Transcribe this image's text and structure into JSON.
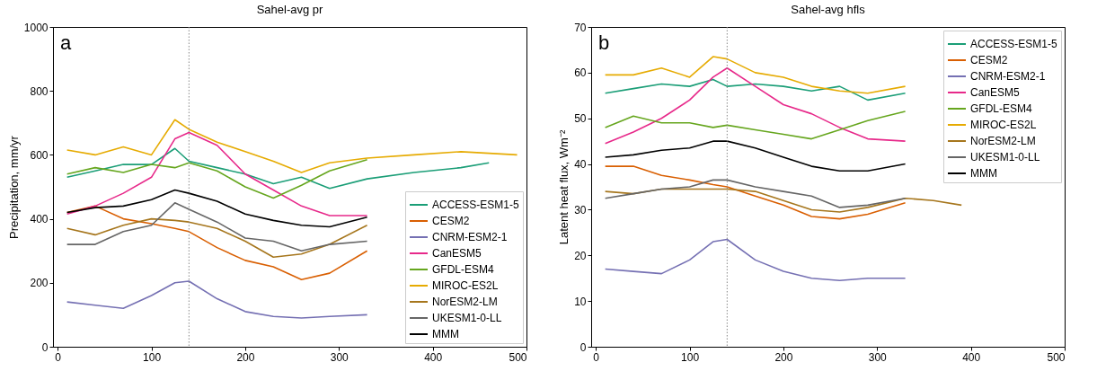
{
  "chart_data": [
    {
      "type": "line",
      "title": "Sahel-avg pr",
      "ylabel": "Precipitation, mm/yr",
      "annotations": [
        "a"
      ],
      "xlim": [
        -5,
        500
      ],
      "xticks": [
        0,
        100,
        200,
        300,
        400,
        500
      ],
      "ylim": [
        0,
        1000
      ],
      "yticks": [
        0,
        200,
        400,
        600,
        800,
        1000
      ],
      "grid": false,
      "legend": "bottom right",
      "line_style": "solid",
      "marker": "none",
      "ref_lines": [
        {
          "axis": "x",
          "value": 140,
          "color": "#888888",
          "line_style": "dotted"
        }
      ],
      "series": [
        {
          "name": "ACCESS-ESM1-5",
          "color": "#1b9e77",
          "x": [
            10,
            40,
            70,
            100,
            125,
            140,
            170,
            200,
            230,
            260,
            290,
            330,
            380,
            430,
            460
          ],
          "values": [
            530,
            550,
            570,
            570,
            620,
            580,
            560,
            540,
            510,
            530,
            495,
            525,
            545,
            560,
            575
          ]
        },
        {
          "name": "CESM2",
          "color": "#d95f02",
          "x": [
            10,
            40,
            70,
            100,
            125,
            140,
            170,
            200,
            230,
            260,
            290,
            330
          ],
          "values": [
            420,
            440,
            400,
            385,
            370,
            360,
            310,
            270,
            250,
            210,
            230,
            300
          ]
        },
        {
          "name": "CNRM-ESM2-1",
          "color": "#7570b3",
          "x": [
            10,
            40,
            70,
            100,
            125,
            140,
            170,
            200,
            230,
            260,
            290,
            330
          ],
          "values": [
            140,
            130,
            120,
            160,
            200,
            205,
            150,
            110,
            95,
            90,
            95,
            100
          ]
        },
        {
          "name": "CanESM5",
          "color": "#e7298a",
          "x": [
            10,
            40,
            70,
            100,
            125,
            140,
            170,
            200,
            230,
            260,
            290,
            330
          ],
          "values": [
            415,
            440,
            480,
            530,
            650,
            670,
            630,
            540,
            490,
            440,
            410,
            410
          ]
        },
        {
          "name": "GFDL-ESM4",
          "color": "#66a61e",
          "x": [
            10,
            40,
            70,
            100,
            125,
            140,
            170,
            200,
            230,
            260,
            290,
            330
          ],
          "values": [
            540,
            560,
            545,
            570,
            560,
            575,
            550,
            500,
            465,
            505,
            550,
            585
          ]
        },
        {
          "name": "MIROC-ES2L",
          "color": "#e6ab02",
          "x": [
            10,
            40,
            70,
            100,
            125,
            140,
            170,
            200,
            230,
            260,
            290,
            330,
            380,
            430,
            490
          ],
          "values": [
            615,
            600,
            625,
            600,
            710,
            680,
            640,
            610,
            580,
            545,
            575,
            590,
            600,
            610,
            600
          ]
        },
        {
          "name": "NorESM2-LM",
          "color": "#a6761d",
          "x": [
            10,
            40,
            70,
            100,
            125,
            140,
            170,
            200,
            230,
            260,
            290,
            330
          ],
          "values": [
            370,
            350,
            380,
            400,
            395,
            390,
            370,
            330,
            280,
            290,
            320,
            380
          ]
        },
        {
          "name": "UKESM1-0-LL",
          "color": "#666666",
          "x": [
            10,
            40,
            70,
            100,
            125,
            140,
            170,
            200,
            230,
            260,
            290,
            330
          ],
          "values": [
            320,
            320,
            360,
            380,
            450,
            430,
            390,
            340,
            330,
            300,
            320,
            330
          ]
        },
        {
          "name": "MMM",
          "color": "#000000",
          "x": [
            10,
            40,
            70,
            100,
            125,
            140,
            170,
            200,
            230,
            260,
            290,
            330
          ],
          "values": [
            420,
            435,
            440,
            460,
            490,
            480,
            455,
            415,
            395,
            380,
            375,
            405
          ]
        }
      ]
    },
    {
      "type": "line",
      "title": "Sahel-avg hfls",
      "ylabel": "Latent heat flux, Wm⁻²",
      "annotations": [
        "b"
      ],
      "xlim": [
        -5,
        500
      ],
      "xticks": [
        0,
        100,
        200,
        300,
        400,
        500
      ],
      "ylim": [
        0,
        70
      ],
      "yticks": [
        0,
        10,
        20,
        30,
        40,
        50,
        60,
        70
      ],
      "grid": false,
      "legend": "top right",
      "line_style": "solid",
      "marker": "none",
      "ref_lines": [
        {
          "axis": "x",
          "value": 140,
          "color": "#888888",
          "line_style": "dotted"
        }
      ],
      "series": [
        {
          "name": "ACCESS-ESM1-5",
          "color": "#1b9e77",
          "x": [
            10,
            40,
            70,
            100,
            125,
            140,
            170,
            200,
            230,
            260,
            290,
            330
          ],
          "values": [
            55.5,
            56.5,
            57.5,
            57,
            58.5,
            57,
            57.5,
            57,
            56,
            57,
            54,
            55.5
          ]
        },
        {
          "name": "CESM2",
          "color": "#d95f02",
          "x": [
            10,
            40,
            70,
            100,
            125,
            140,
            170,
            200,
            230,
            260,
            290,
            330
          ],
          "values": [
            39.5,
            39.5,
            37.5,
            36.5,
            35.5,
            35,
            33,
            31,
            28.5,
            28,
            29,
            31.5
          ]
        },
        {
          "name": "CNRM-ESM2-1",
          "color": "#7570b3",
          "x": [
            10,
            40,
            70,
            100,
            125,
            140,
            170,
            200,
            230,
            260,
            290,
            330
          ],
          "values": [
            17,
            16.5,
            16,
            19,
            23,
            23.5,
            19,
            16.5,
            15,
            14.5,
            15,
            15
          ]
        },
        {
          "name": "CanESM5",
          "color": "#e7298a",
          "x": [
            10,
            40,
            70,
            100,
            125,
            140,
            170,
            200,
            230,
            260,
            290,
            330
          ],
          "values": [
            44.5,
            47,
            50,
            54,
            59,
            61,
            57,
            53,
            51,
            48,
            45.5,
            45
          ]
        },
        {
          "name": "GFDL-ESM4",
          "color": "#66a61e",
          "x": [
            10,
            40,
            70,
            100,
            125,
            140,
            170,
            200,
            230,
            260,
            290,
            330
          ],
          "values": [
            48,
            50.5,
            49,
            49,
            48,
            48.5,
            47.5,
            46.5,
            45.5,
            47.5,
            49.5,
            51.5
          ]
        },
        {
          "name": "MIROC-ES2L",
          "color": "#e6ab02",
          "x": [
            10,
            40,
            70,
            100,
            125,
            140,
            170,
            200,
            230,
            260,
            290,
            330
          ],
          "values": [
            59.5,
            59.5,
            61,
            59,
            63.5,
            63,
            60,
            59,
            57,
            56,
            55.5,
            57
          ]
        },
        {
          "name": "NorESM2-LM",
          "color": "#a6761d",
          "x": [
            10,
            40,
            70,
            100,
            125,
            140,
            170,
            200,
            230,
            260,
            290,
            330,
            360,
            390
          ],
          "values": [
            34,
            33.5,
            34.5,
            34.5,
            34.5,
            34.5,
            34,
            32,
            30,
            29.5,
            30.5,
            32.5,
            32,
            31
          ]
        },
        {
          "name": "UKESM1-0-LL",
          "color": "#666666",
          "x": [
            10,
            40,
            70,
            100,
            125,
            140,
            170,
            200,
            230,
            260,
            290,
            330
          ],
          "values": [
            32.5,
            33.5,
            34.5,
            35,
            36.5,
            36.5,
            35,
            34,
            33,
            30.5,
            31,
            32.5
          ]
        },
        {
          "name": "MMM",
          "color": "#000000",
          "x": [
            10,
            40,
            70,
            100,
            125,
            140,
            170,
            200,
            230,
            260,
            290,
            330
          ],
          "values": [
            41.5,
            42,
            43,
            43.5,
            45,
            45,
            43.5,
            41.5,
            39.5,
            38.5,
            38.5,
            40
          ]
        }
      ]
    }
  ]
}
